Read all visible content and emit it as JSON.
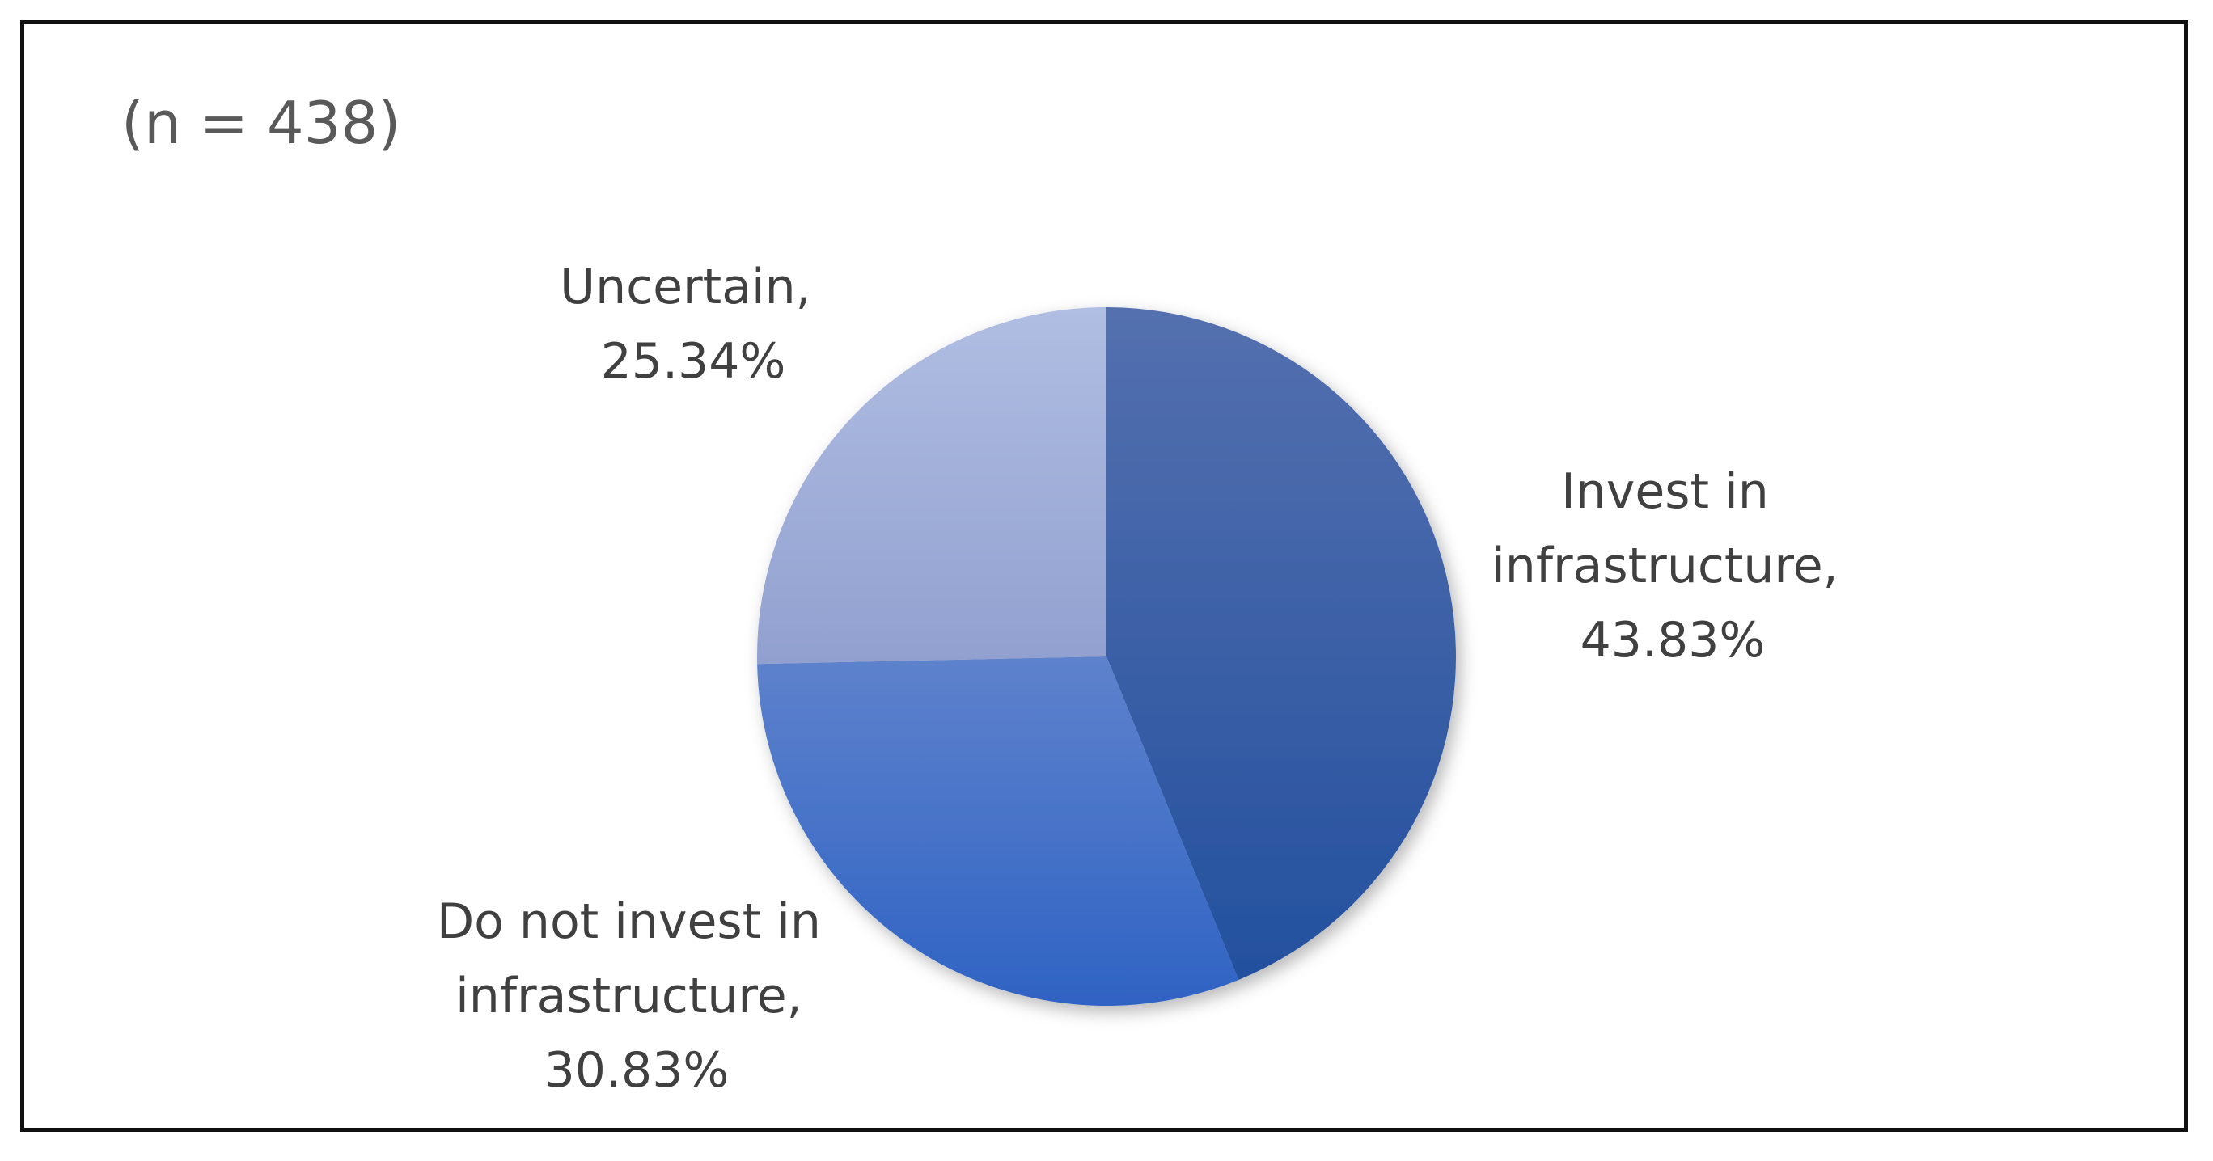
{
  "chart_data": {
    "type": "pie",
    "note": "(n = 438)",
    "slices": [
      {
        "label_lines": [
          "Invest in",
          "infrastructure,",
          "43.83%"
        ],
        "value": 43.83,
        "color": "#2B56A3"
      },
      {
        "label_lines": [
          "Do not invest in",
          "infrastructure,",
          "30.83%"
        ],
        "value": 30.83,
        "color": "#4472C4"
      },
      {
        "label_lines": [
          "Uncertain,",
          "25.34%"
        ],
        "value": 25.34,
        "color": "#A5B4DC"
      }
    ]
  }
}
